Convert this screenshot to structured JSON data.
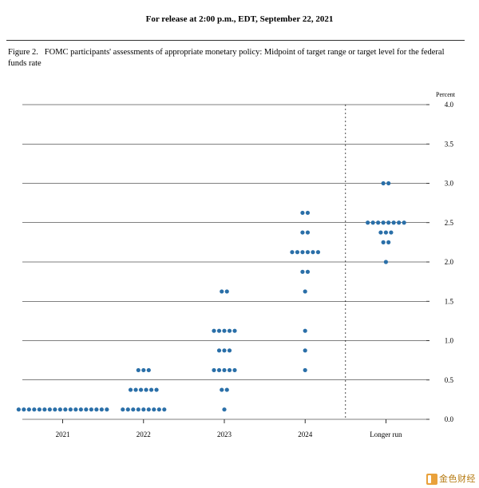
{
  "header": {
    "release_line": "For release at 2:00 p.m., EDT, September 22, 2021"
  },
  "figure": {
    "caption_prefix": "Figure 2.",
    "caption_text": "FOMC participants' assessments of appropriate monetary policy:  Midpoint of target range or target level for the federal funds rate",
    "y_axis_title": "Percent",
    "ylim": [
      0.0,
      4.0
    ],
    "ytick_step": 0.5,
    "yticks": [
      0.0,
      0.5,
      1.0,
      1.5,
      2.0,
      2.5,
      3.0,
      3.5,
      4.0
    ],
    "x_categories": [
      "2021",
      "2022",
      "2023",
      "2024",
      "Longer run"
    ],
    "separator_after_index": 3,
    "dot_color": "#2a6fa8",
    "dot_radius": 2.6,
    "grid_color": "#000000",
    "background_color": "#ffffff",
    "label_fontsize": 9,
    "data": {
      "2021": [
        {
          "value": 0.125,
          "count": 18
        }
      ],
      "2022": [
        {
          "value": 0.125,
          "count": 9
        },
        {
          "value": 0.375,
          "count": 6
        },
        {
          "value": 0.625,
          "count": 3
        }
      ],
      "2023": [
        {
          "value": 0.125,
          "count": 1
        },
        {
          "value": 0.375,
          "count": 2
        },
        {
          "value": 0.625,
          "count": 5
        },
        {
          "value": 0.875,
          "count": 3
        },
        {
          "value": 1.125,
          "count": 5
        },
        {
          "value": 1.625,
          "count": 2
        }
      ],
      "2024": [
        {
          "value": 0.625,
          "count": 1
        },
        {
          "value": 0.875,
          "count": 1
        },
        {
          "value": 1.125,
          "count": 1
        },
        {
          "value": 1.625,
          "count": 1
        },
        {
          "value": 1.875,
          "count": 2
        },
        {
          "value": 2.125,
          "count": 6
        },
        {
          "value": 2.375,
          "count": 2
        },
        {
          "value": 2.625,
          "count": 2
        }
      ],
      "Longer run": [
        {
          "value": 2.0,
          "count": 1
        },
        {
          "value": 2.25,
          "count": 2
        },
        {
          "value": 2.375,
          "count": 3
        },
        {
          "value": 2.5,
          "count": 8
        },
        {
          "value": 3.0,
          "count": 2
        }
      ]
    }
  },
  "watermark": {
    "text": "金色财经"
  }
}
